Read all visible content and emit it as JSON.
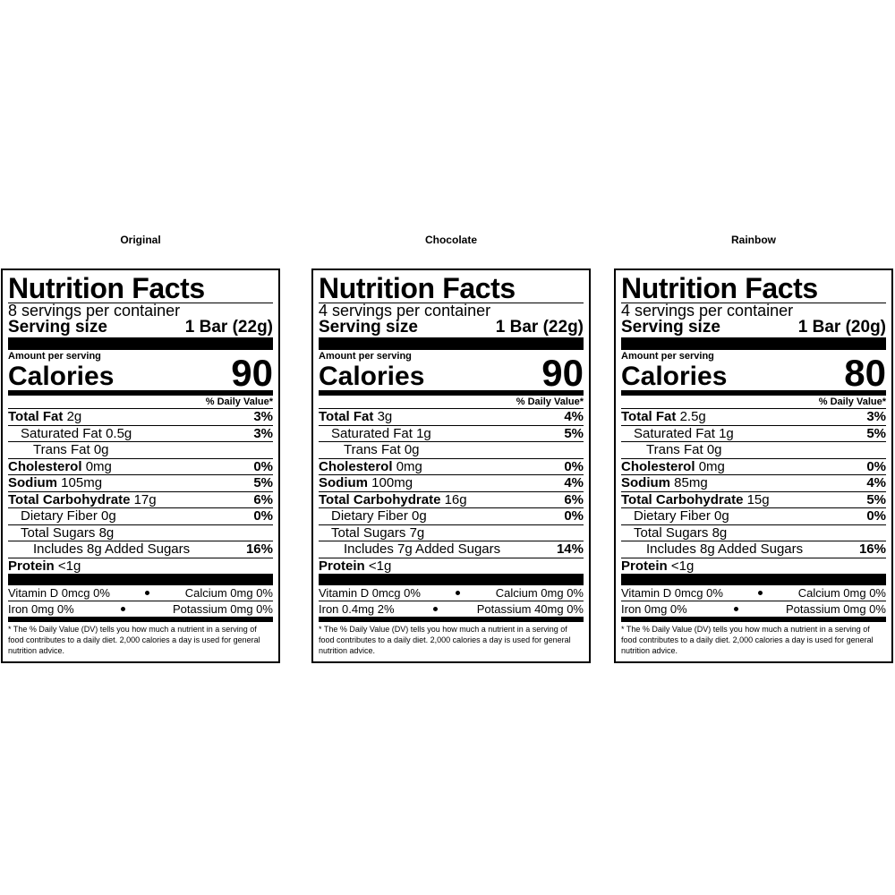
{
  "panels": [
    {
      "caption": "Original",
      "title": "Nutrition Facts",
      "servings": "8 servings per container",
      "serving_size_label": "Serving size",
      "serving_size": "1 Bar (22g)",
      "amount_per_serving": "Amount per serving",
      "calories_label": "Calories",
      "calories": "90",
      "dv_header": "% Daily Value*",
      "rows": [
        {
          "label": "Total Fat",
          "amount": "2g",
          "dv": "3%"
        },
        {
          "label": "Saturated Fat",
          "amount": "0.5g",
          "dv": "3%"
        },
        {
          "label": "Trans Fat",
          "amount": "0g"
        },
        {
          "label": "Cholesterol",
          "amount": "0mg",
          "dv": "0%"
        },
        {
          "label": "Sodium",
          "amount": "105mg",
          "dv": "5%"
        },
        {
          "label": "Total Carbohydrate",
          "amount": "17g",
          "dv": "6%"
        },
        {
          "label": "Dietary Fiber",
          "amount": "0g",
          "dv": "0%"
        },
        {
          "label": "Total Sugars",
          "amount": "8g"
        },
        {
          "label": "Includes 8g Added Sugars",
          "dv": "16%"
        },
        {
          "label": "Protein",
          "amount": "<1g"
        }
      ],
      "vitamins": [
        [
          "Vitamin D 0mcg 0%",
          "Calcium 0mg 0%"
        ],
        [
          "Iron 0mg 0%",
          "Potassium 0mg 0%"
        ]
      ],
      "footnote": "* The % Daily Value (DV) tells you how much a nutrient in a serving of food contributes to a daily diet. 2,000 calories a day is used for general nutrition advice."
    },
    {
      "caption": "Chocolate",
      "title": "Nutrition Facts",
      "servings": "4 servings per container",
      "serving_size_label": "Serving size",
      "serving_size": "1 Bar (22g)",
      "amount_per_serving": "Amount per serving",
      "calories_label": "Calories",
      "calories": "90",
      "dv_header": "% Daily Value*",
      "rows": [
        {
          "label": "Total Fat",
          "amount": "3g",
          "dv": "4%"
        },
        {
          "label": "Saturated Fat",
          "amount": "1g",
          "dv": "5%"
        },
        {
          "label": "Trans Fat",
          "amount": "0g"
        },
        {
          "label": "Cholesterol",
          "amount": "0mg",
          "dv": "0%"
        },
        {
          "label": "Sodium",
          "amount": "100mg",
          "dv": "4%"
        },
        {
          "label": "Total Carbohydrate",
          "amount": "16g",
          "dv": "6%"
        },
        {
          "label": "Dietary Fiber",
          "amount": "0g",
          "dv": "0%"
        },
        {
          "label": "Total Sugars",
          "amount": "7g"
        },
        {
          "label": "Includes 7g Added Sugars",
          "dv": "14%"
        },
        {
          "label": "Protein",
          "amount": "<1g"
        }
      ],
      "vitamins": [
        [
          "Vitamin D 0mcg 0%",
          "Calcium 0mg 0%"
        ],
        [
          "Iron 0.4mg 2%",
          "Potassium 40mg 0%"
        ]
      ],
      "footnote": "* The % Daily Value (DV) tells you how much a nutrient in a serving of food contributes to a daily diet. 2,000 calories a day is used for general nutrition advice."
    },
    {
      "caption": "Rainbow",
      "title": "Nutrition Facts",
      "servings": "4 servings per container",
      "serving_size_label": "Serving size",
      "serving_size": "1 Bar (20g)",
      "amount_per_serving": "Amount per serving",
      "calories_label": "Calories",
      "calories": "80",
      "dv_header": "% Daily Value*",
      "rows": [
        {
          "label": "Total Fat",
          "amount": "2.5g",
          "dv": "3%"
        },
        {
          "label": "Saturated Fat",
          "amount": "1g",
          "dv": "5%"
        },
        {
          "label": "Trans Fat",
          "amount": "0g"
        },
        {
          "label": "Cholesterol",
          "amount": "0mg",
          "dv": "0%"
        },
        {
          "label": "Sodium",
          "amount": "85mg",
          "dv": "4%"
        },
        {
          "label": "Total Carbohydrate",
          "amount": "15g",
          "dv": "5%"
        },
        {
          "label": "Dietary Fiber",
          "amount": "0g",
          "dv": "0%"
        },
        {
          "label": "Total Sugars",
          "amount": "8g"
        },
        {
          "label": "Includes 8g Added Sugars",
          "dv": "16%"
        },
        {
          "label": "Protein",
          "amount": "<1g"
        }
      ],
      "vitamins": [
        [
          "Vitamin D 0mcg 0%",
          "Calcium 0mg 0%"
        ],
        [
          "Iron 0mg 0%",
          "Potassium 0mg 0%"
        ]
      ],
      "footnote": "* The % Daily Value (DV) tells you how much a nutrient in a serving of food contributes to a daily diet. 2,000 calories a day is used for general nutrition advice."
    }
  ]
}
